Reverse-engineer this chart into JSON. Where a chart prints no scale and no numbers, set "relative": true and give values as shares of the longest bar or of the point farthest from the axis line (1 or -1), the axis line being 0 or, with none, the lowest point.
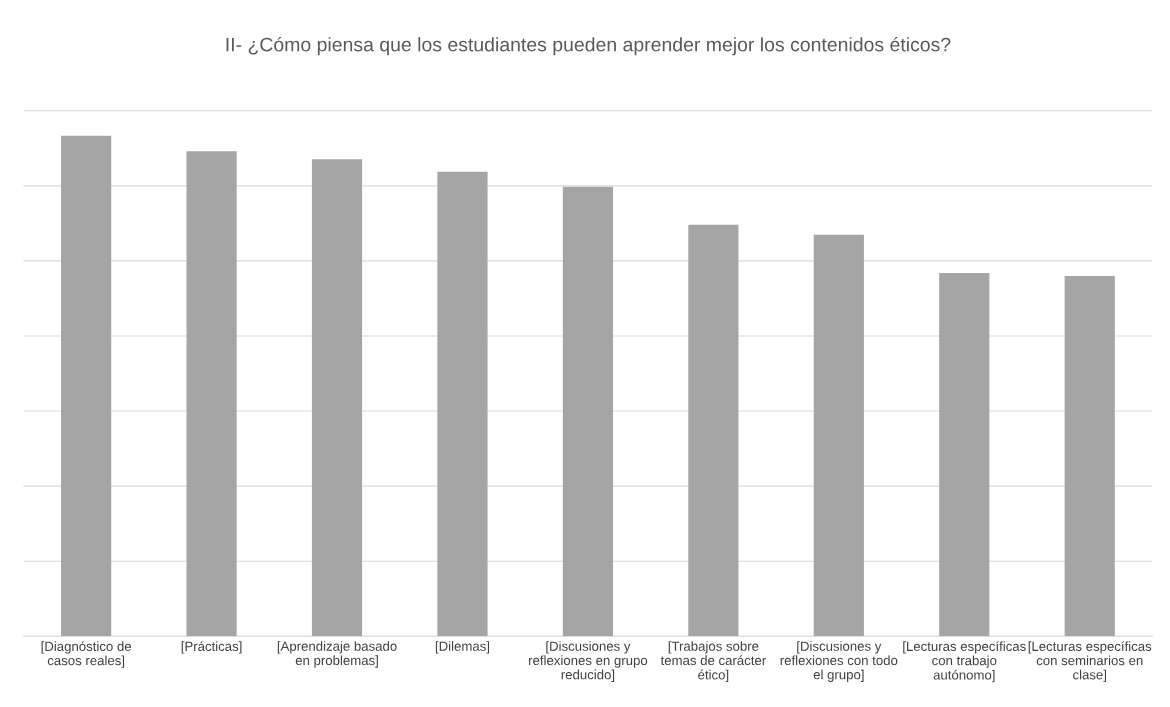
{
  "chart_data": {
    "type": "bar",
    "title": "II- ¿Cómo piensa que los estudiantes pueden aprender mejor los contenidos éticos?",
    "categories": [
      "[Diagnóstico de\ncasos reales]",
      "[Prácticas]",
      "[Aprendizaje basado\nen problemas]",
      "[Dilemas]",
      "[Discusiones y\nreflexiones en grupo\nreducido]",
      "[Trabajos sobre\ntemas de carácter\nético]",
      "[Discusiones y\nreflexiones con todo\nel grupo]",
      "[Lecturas específicas\ncon trabajo\nautónomo]",
      "[Lecturas específicas\ncon seminarios en\nclase]"
    ],
    "values": [
      1,
      0.969,
      0.953,
      0.928,
      0.898,
      0.822,
      0.802,
      0.726,
      0.72
    ],
    "color": "#a5a5a5",
    "relative": true,
    "grid": "y"
  }
}
